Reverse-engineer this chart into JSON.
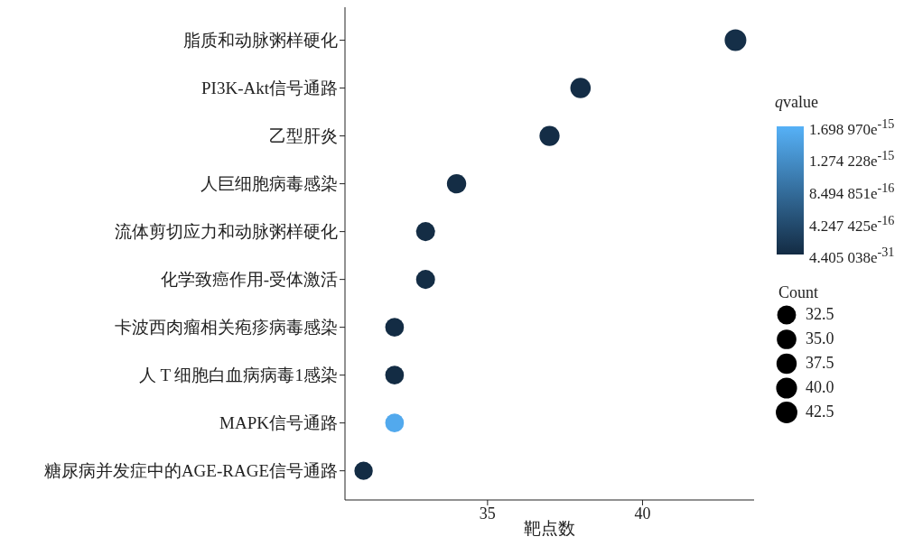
{
  "chart_data": {
    "type": "bubble",
    "xlabel": "靶点数",
    "categories": [
      "脂质和动脉粥样硬化",
      "PI3K-Akt信号通路",
      "乙型肝炎",
      "人巨细胞病毒感染",
      "流体剪切应力和动脉粥样硬化",
      "化学致癌作用-受体激活",
      "卡波西肉瘤相关疱疹病毒感染",
      "人 T 细胞白血病病毒1感染",
      "MAPK信号通路",
      "糖尿病并发症中的AGE-RAGE信号通路"
    ],
    "series": [
      {
        "values": [
          43,
          38,
          37,
          34,
          33,
          33,
          32,
          32,
          32,
          31
        ],
        "sizes": [
          43,
          38,
          37,
          34,
          33,
          33,
          32,
          32,
          32,
          31
        ],
        "cvalues": [
          5e-17,
          3e-17,
          3e-17,
          2e-17,
          2e-17,
          2e-17,
          1e-17,
          1e-17,
          1.6e-15,
          1e-17
        ]
      }
    ],
    "orientation": "horizontal",
    "xlim": [
      30.4,
      43.6
    ],
    "xticks": [
      35,
      40
    ],
    "clabel": "qvalue",
    "clim": [
      4.405038e-31,
      1.69897e-15
    ],
    "cticks": [
      {
        "value": 1.69897e-15,
        "label": "1.698 970e$^{-15}$"
      },
      {
        "value": 1.274228e-15,
        "label": "1.274 228e$^{-15}$"
      },
      {
        "value": 8.494851e-16,
        "label": "8.494 851e$^{-16}$"
      },
      {
        "value": 4.247425e-16,
        "label": "4.247 425e$^{-16}$"
      },
      {
        "value": 4.405038e-31,
        "label": "4.405 038e$^{-31}$"
      }
    ],
    "legend_title": "Count",
    "size_legend": [
      32.5,
      {
        "value": 35,
        "label": "35.0"
      },
      37.5,
      {
        "value": 40,
        "label": "40.0"
      },
      42.5
    ]
  }
}
